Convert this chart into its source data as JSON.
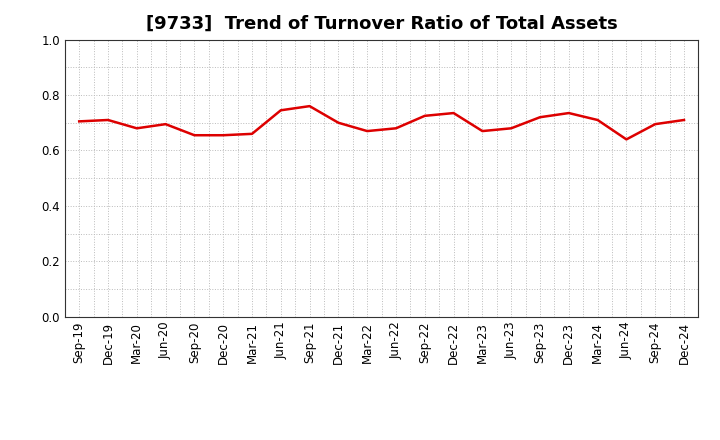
{
  "title": "[9733]  Trend of Turnover Ratio of Total Assets",
  "labels": [
    "Sep-19",
    "Dec-19",
    "Mar-20",
    "Jun-20",
    "Sep-20",
    "Dec-20",
    "Mar-21",
    "Jun-21",
    "Sep-21",
    "Dec-21",
    "Mar-22",
    "Jun-22",
    "Sep-22",
    "Dec-22",
    "Mar-23",
    "Jun-23",
    "Sep-23",
    "Dec-23",
    "Mar-24",
    "Jun-24",
    "Sep-24",
    "Dec-24"
  ],
  "values": [
    0.705,
    0.71,
    0.68,
    0.695,
    0.655,
    0.655,
    0.66,
    0.745,
    0.76,
    0.7,
    0.67,
    0.68,
    0.725,
    0.735,
    0.67,
    0.68,
    0.72,
    0.735,
    0.71,
    0.64,
    0.695,
    0.71
  ],
  "line_color": "#dd0000",
  "line_width": 1.8,
  "ylim": [
    0.0,
    1.0
  ],
  "yticks": [
    0.0,
    0.2,
    0.4,
    0.6,
    0.8,
    1.0
  ],
  "grid_color": "#bbbbbb",
  "grid_linestyle": ":",
  "grid_linewidth": 0.7,
  "bg_color": "#ffffff",
  "title_fontsize": 13,
  "tick_fontsize": 8.5,
  "fig_width": 7.2,
  "fig_height": 4.4,
  "dpi": 100
}
